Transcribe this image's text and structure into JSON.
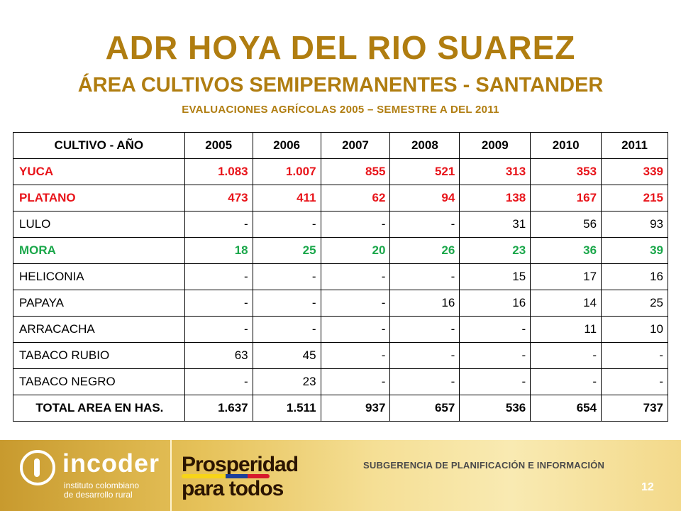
{
  "title": "ADR HOYA DEL RIO SUAREZ",
  "subtitle": "ÁREA CULTIVOS SEMIPERMANENTES  - SANTANDER",
  "subtitle2": "EVALUACIONES AGRÍCOLAS 2005 – SEMESTRE A DEL 2011",
  "table": {
    "header": [
      "CULTIVO  - AÑO",
      "2005",
      "2006",
      "2007",
      "2008",
      "2009",
      "2010",
      "2011"
    ],
    "rows": [
      {
        "style": "red",
        "cells": [
          "YUCA",
          "1.083",
          "1.007",
          "855",
          "521",
          "313",
          "353",
          "339"
        ]
      },
      {
        "style": "red",
        "cells": [
          "PLATANO",
          "473",
          "411",
          "62",
          "94",
          "138",
          "167",
          "215"
        ]
      },
      {
        "style": "plain",
        "cells": [
          "LULO",
          "-",
          "-",
          "-",
          "-",
          "31",
          "56",
          "93"
        ]
      },
      {
        "style": "green",
        "cells": [
          "MORA",
          "18",
          "25",
          "20",
          "26",
          "23",
          "36",
          "39"
        ]
      },
      {
        "style": "plain",
        "cells": [
          "HELICONIA",
          "-",
          "-",
          "-",
          "-",
          "15",
          "17",
          "16"
        ]
      },
      {
        "style": "plain",
        "cells": [
          "PAPAYA",
          "-",
          "-",
          "-",
          "16",
          "16",
          "14",
          "25"
        ]
      },
      {
        "style": "plain",
        "cells": [
          "ARRACACHA",
          "-",
          "-",
          "-",
          "-",
          "-",
          "11",
          "10"
        ]
      },
      {
        "style": "plain",
        "cells": [
          "TABACO RUBIO",
          "63",
          "45",
          "-",
          "-",
          "-",
          "-",
          "-"
        ]
      },
      {
        "style": "plain",
        "cells": [
          "TABACO NEGRO",
          "-",
          "23",
          "-",
          "-",
          "-",
          "-",
          "-"
        ]
      },
      {
        "style": "total",
        "cells": [
          "TOTAL AREA EN HAS.",
          "1.637",
          "1.511",
          "937",
          "657",
          "536",
          "654",
          "737"
        ]
      }
    ]
  },
  "footer": {
    "incoder": "incoder",
    "incoder_sub_1": "instituto colombiano",
    "incoder_sub_2": "de desarrollo rural",
    "prosperidad_1": "Prosperidad",
    "prosperidad_2": "para todos",
    "subgerencia": "SUBGERENCIA DE PLANIFICACIÓN E INFORMACIÓN",
    "page_number": "12"
  },
  "colors": {
    "title": "#b07d10",
    "red_row": "#e8141a",
    "green_row": "#1aa74a"
  }
}
